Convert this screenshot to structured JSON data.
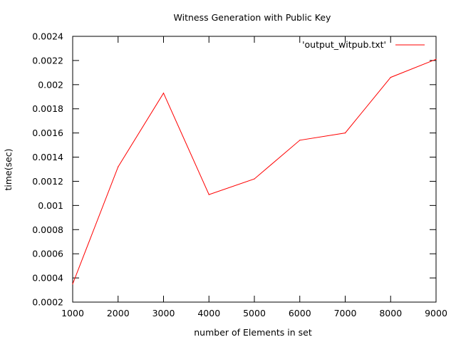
{
  "chart_data": {
    "type": "line",
    "title": "Witness Generation with Public Key",
    "xlabel": "number of Elements in set",
    "ylabel": "time(sec)",
    "xlim": [
      1000,
      9000
    ],
    "ylim": [
      0.0002,
      0.0024
    ],
    "x_ticks": [
      1000,
      2000,
      3000,
      4000,
      5000,
      6000,
      7000,
      8000,
      9000
    ],
    "x_tick_labels": [
      "1000",
      "2000",
      "3000",
      "4000",
      "5000",
      "6000",
      "7000",
      "8000",
      "9000"
    ],
    "y_ticks": [
      0.0002,
      0.0004,
      0.0006,
      0.0008,
      0.001,
      0.0012,
      0.0014,
      0.0016,
      0.0018,
      0.002,
      0.0022,
      0.0024
    ],
    "y_tick_labels": [
      "0.0002",
      "0.0004",
      "0.0006",
      "0.0008",
      "0.001",
      "0.0012",
      "0.0014",
      "0.0016",
      "0.0018",
      "0.002",
      "0.0022",
      "0.0024"
    ],
    "grid": false,
    "legend_position": "top-right",
    "series": [
      {
        "name": "'output_witpub.txt'",
        "color": "#ff0000",
        "x": [
          1000,
          2000,
          3000,
          4000,
          5000,
          6000,
          7000,
          8000,
          9000
        ],
        "values": [
          0.00035,
          0.00132,
          0.00193,
          0.00109,
          0.00122,
          0.00154,
          0.0016,
          0.00206,
          0.00221
        ]
      }
    ]
  }
}
